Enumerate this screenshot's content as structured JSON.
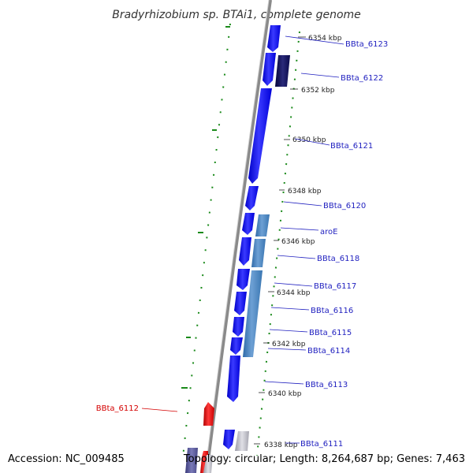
{
  "title": "Bradyrhizobium sp. BTAi1, complete genome",
  "footer": {
    "accession": "Accession: NC_009485",
    "summary": "Topology: circular; Length: 8,264,687 bp; Genes: 7,463"
  },
  "kbp_ticks": [
    "6354 kbp",
    "6352 kbp",
    "6350 kbp",
    "6348 kbp",
    "6346 kbp",
    "6344 kbp",
    "6342 kbp",
    "6340 kbp",
    "6338 kbp"
  ],
  "gene_labels": [
    "BBta_6123",
    "BBta_6122",
    "BBta_6121",
    "BBta_6120",
    "aroE",
    "BBta_6118",
    "BBta_6117",
    "BBta_6116",
    "BBta_6115",
    "BBta_6114",
    "BBta_6113",
    "BBta_6112",
    "BBta_6111"
  ],
  "colors": {
    "forward_cds": "#0a0af0",
    "dark_cds": "#0a0a5a",
    "steel_cds": "#4a86c0",
    "reverse_cds": "#e01010",
    "grey_cds": "#b8b8c0",
    "gc_skew": "#1a8a1a",
    "backbone": "#8a8a8a",
    "label_blue": "#1f1fbf",
    "label_red": "#d40000"
  }
}
